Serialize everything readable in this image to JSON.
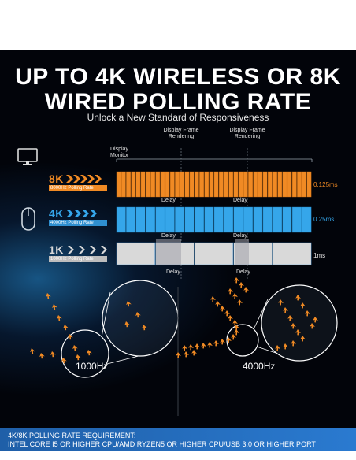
{
  "title_line1": "UP TO 4K WIRELESS OR 8K",
  "title_line2": "WIRED POLLING RATE",
  "subtitle": "Unlock a New Standard of Responsiveness",
  "labels": {
    "display_monitor_1": "Display",
    "display_monitor_2": "Monitor",
    "frame_rendering_a_1": "Display Frame",
    "frame_rendering_a_2": "Rendering",
    "frame_rendering_b_1": "Display Frame",
    "frame_rendering_b_2": "Rendering",
    "delay": "Delay"
  },
  "rows": [
    {
      "badge": "8K",
      "caption": "8000Hz Polling Rate",
      "rate": "0.125ms",
      "color": "#f08a24"
    },
    {
      "badge": "4K",
      "caption": "4000Hz Polling Rate",
      "rate": "0.25ms",
      "color": "#35a6ea"
    },
    {
      "badge": "1K",
      "caption": "1000Hz Polling Rate",
      "rate": "1ms",
      "color": "#d9d9d9"
    }
  ],
  "comparison": {
    "left": "1000Hz",
    "right": "4000Hz"
  },
  "requirement": {
    "line1": "4K/8K POLLING RATE REQUIREMENT:",
    "line2": "INTEL CORE I5 OR HIGHER CPU/AMD RYZEN5 OR HIGHER CPU/USB 3.0 OR HIGHER PORT"
  },
  "colors": {
    "orange": "#f08a24",
    "blue": "#35a6ea",
    "grey": "#d9d9d9",
    "panel": "#02040a",
    "banner": "#2a6fc0"
  },
  "icons": [
    "monitor-icon",
    "mouse-icon"
  ]
}
